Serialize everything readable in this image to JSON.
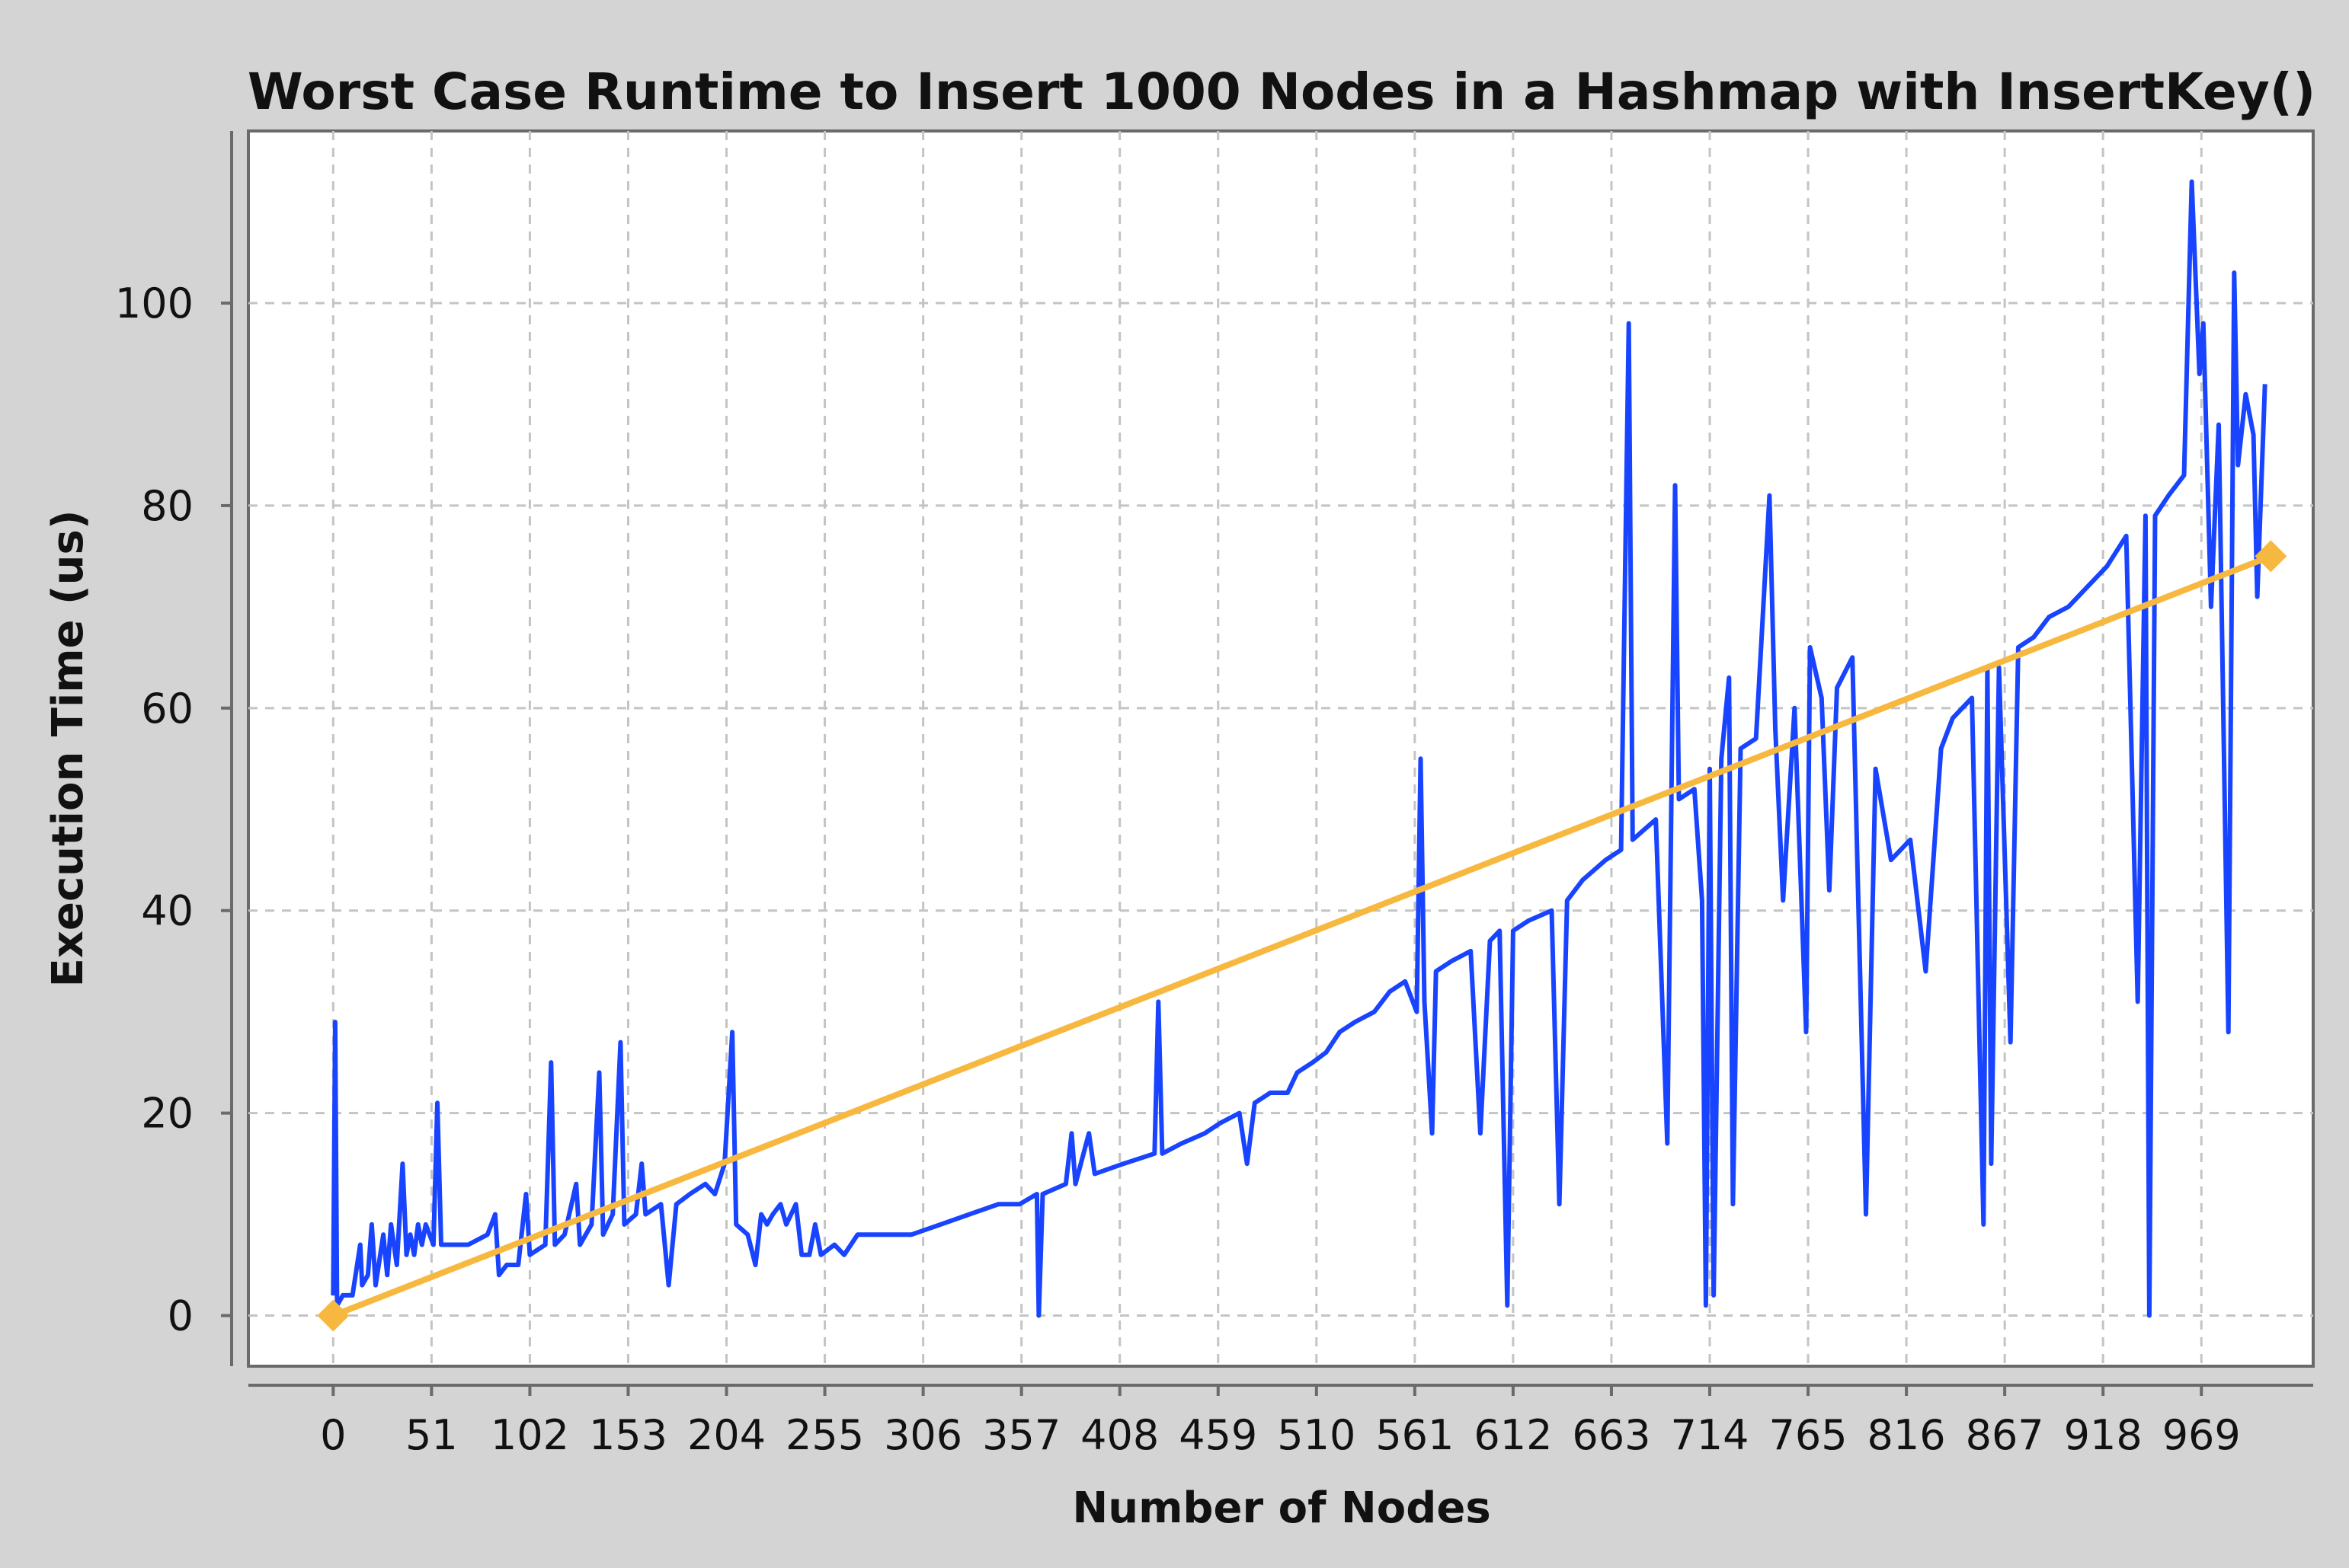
{
  "chart_data": {
    "type": "line",
    "title": "Worst Case Runtime to Insert 1000 Nodes in a Hashmap with InsertKey()",
    "xlabel": "Number of Nodes",
    "ylabel": "Execution Time (us)",
    "xlim": [
      -44,
      1027
    ],
    "ylim": [
      -5,
      117
    ],
    "x_ticks": [
      0,
      51,
      102,
      153,
      204,
      255,
      306,
      357,
      408,
      459,
      510,
      561,
      612,
      663,
      714,
      765,
      816,
      867,
      918,
      969
    ],
    "y_ticks": [
      0,
      20,
      40,
      60,
      80,
      100
    ],
    "grid": true,
    "colors": {
      "series": "#1844ff",
      "trend": "#f7b840",
      "background": "#ffffff",
      "frame": "#d4d4d4"
    },
    "series": [
      {
        "values": [
          [
            0,
            2
          ],
          [
            1,
            29
          ],
          [
            2,
            1
          ],
          [
            5,
            2
          ],
          [
            10,
            2
          ],
          [
            14,
            7
          ],
          [
            15,
            3
          ],
          [
            18,
            4
          ],
          [
            20,
            9
          ],
          [
            22,
            3
          ],
          [
            26,
            8
          ],
          [
            28,
            4
          ],
          [
            30,
            9
          ],
          [
            33,
            5
          ],
          [
            36,
            15
          ],
          [
            38,
            6
          ],
          [
            40,
            8
          ],
          [
            42,
            6
          ],
          [
            44,
            9
          ],
          [
            46,
            7
          ],
          [
            48,
            9
          ],
          [
            52,
            7
          ],
          [
            54,
            21
          ],
          [
            56,
            7
          ],
          [
            60,
            7
          ],
          [
            70,
            7
          ],
          [
            80,
            8
          ],
          [
            84,
            10
          ],
          [
            86,
            4
          ],
          [
            90,
            5
          ],
          [
            96,
            5
          ],
          [
            100,
            12
          ],
          [
            102,
            6
          ],
          [
            110,
            7
          ],
          [
            113,
            25
          ],
          [
            115,
            7
          ],
          [
            120,
            8
          ],
          [
            126,
            13
          ],
          [
            128,
            7
          ],
          [
            134,
            9
          ],
          [
            138,
            24
          ],
          [
            140,
            8
          ],
          [
            145,
            10
          ],
          [
            149,
            27
          ],
          [
            151,
            9
          ],
          [
            157,
            10
          ],
          [
            160,
            15
          ],
          [
            162,
            10
          ],
          [
            170,
            11
          ],
          [
            174,
            3
          ],
          [
            178,
            11
          ],
          [
            185,
            12
          ],
          [
            193,
            13
          ],
          [
            198,
            12
          ],
          [
            203,
            15
          ],
          [
            207,
            28
          ],
          [
            209,
            9
          ],
          [
            215,
            8
          ],
          [
            219,
            5
          ],
          [
            222,
            10
          ],
          [
            225,
            9
          ],
          [
            228,
            10
          ],
          [
            232,
            11
          ],
          [
            235,
            9
          ],
          [
            240,
            11
          ],
          [
            243,
            6
          ],
          [
            247,
            6
          ],
          [
            250,
            9
          ],
          [
            253,
            6
          ],
          [
            260,
            7
          ],
          [
            265,
            6
          ],
          [
            272,
            8
          ],
          [
            285,
            8
          ],
          [
            300,
            8
          ],
          [
            315,
            9
          ],
          [
            330,
            10
          ],
          [
            345,
            11
          ],
          [
            356,
            11
          ],
          [
            365,
            12
          ],
          [
            366,
            0
          ],
          [
            368,
            12
          ],
          [
            380,
            13
          ],
          [
            383,
            18
          ],
          [
            385,
            13
          ],
          [
            392,
            18
          ],
          [
            395,
            14
          ],
          [
            410,
            15
          ],
          [
            426,
            16
          ],
          [
            428,
            31
          ],
          [
            430,
            16
          ],
          [
            440,
            17
          ],
          [
            452,
            18
          ],
          [
            460,
            19
          ],
          [
            470,
            20
          ],
          [
            474,
            15
          ],
          [
            478,
            21
          ],
          [
            486,
            22
          ],
          [
            495,
            22
          ],
          [
            500,
            24
          ],
          [
            508,
            25
          ],
          [
            515,
            26
          ],
          [
            522,
            28
          ],
          [
            530,
            29
          ],
          [
            540,
            30
          ],
          [
            548,
            32
          ],
          [
            556,
            33
          ],
          [
            562,
            30
          ],
          [
            564,
            55
          ],
          [
            566,
            31
          ],
          [
            570,
            18
          ],
          [
            572,
            34
          ],
          [
            580,
            35
          ],
          [
            590,
            36
          ],
          [
            595,
            18
          ],
          [
            600,
            37
          ],
          [
            605,
            38
          ],
          [
            609,
            1
          ],
          [
            612,
            38
          ],
          [
            620,
            39
          ],
          [
            632,
            40
          ],
          [
            636,
            11
          ],
          [
            640,
            41
          ],
          [
            648,
            43
          ],
          [
            660,
            45
          ],
          [
            668,
            46
          ],
          [
            672,
            98
          ],
          [
            674,
            47
          ],
          [
            680,
            48
          ],
          [
            686,
            49
          ],
          [
            692,
            17
          ],
          [
            696,
            82
          ],
          [
            698,
            51
          ],
          [
            706,
            52
          ],
          [
            710,
            41
          ],
          [
            712,
            1
          ],
          [
            714,
            54
          ],
          [
            716,
            2
          ],
          [
            720,
            55
          ],
          [
            724,
            63
          ],
          [
            726,
            11
          ],
          [
            730,
            56
          ],
          [
            738,
            57
          ],
          [
            745,
            81
          ],
          [
            748,
            58
          ],
          [
            752,
            41
          ],
          [
            758,
            60
          ],
          [
            764,
            28
          ],
          [
            766,
            66
          ],
          [
            772,
            61
          ],
          [
            776,
            42
          ],
          [
            780,
            62
          ],
          [
            788,
            65
          ],
          [
            795,
            10
          ],
          [
            800,
            54
          ],
          [
            808,
            45
          ],
          [
            818,
            47
          ],
          [
            826,
            34
          ],
          [
            834,
            56
          ],
          [
            840,
            59
          ],
          [
            850,
            61
          ],
          [
            856,
            9
          ],
          [
            858,
            64
          ],
          [
            860,
            15
          ],
          [
            864,
            64
          ],
          [
            870,
            27
          ],
          [
            874,
            66
          ],
          [
            882,
            67
          ],
          [
            890,
            69
          ],
          [
            900,
            70
          ],
          [
            910,
            72
          ],
          [
            920,
            74
          ],
          [
            930,
            77
          ],
          [
            936,
            31
          ],
          [
            940,
            79
          ],
          [
            942,
            0
          ],
          [
            945,
            79
          ],
          [
            952,
            81
          ],
          [
            960,
            83
          ],
          [
            964,
            112
          ],
          [
            968,
            93
          ],
          [
            970,
            98
          ],
          [
            974,
            70
          ],
          [
            978,
            88
          ],
          [
            983,
            28
          ],
          [
            986,
            103
          ],
          [
            988,
            84
          ],
          [
            992,
            91
          ],
          [
            996,
            87
          ],
          [
            998,
            71
          ],
          [
            1002,
            92
          ]
        ]
      },
      {
        "values": [
          [
            0,
            0
          ],
          [
            1005,
            75
          ]
        ]
      }
    ]
  }
}
